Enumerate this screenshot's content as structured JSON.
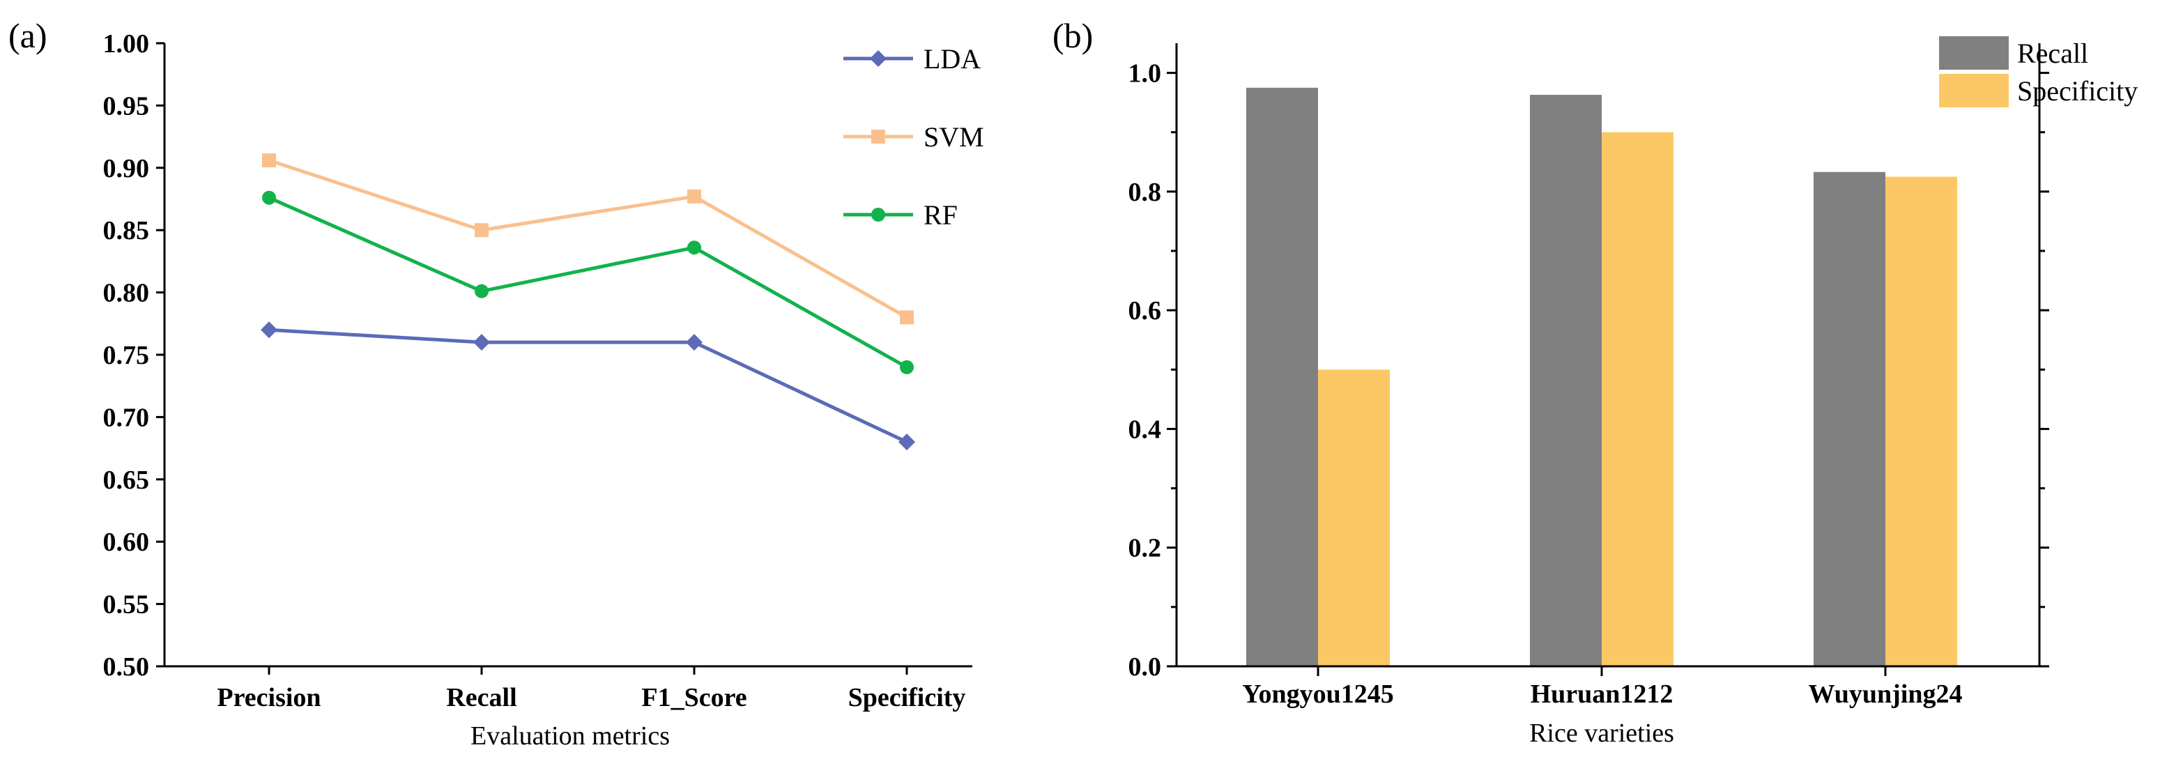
{
  "chart_data": [
    {
      "panel_label": "(a)",
      "type": "line",
      "categories": [
        "Precision",
        "Recall",
        "F1_Score",
        "Specificity"
      ],
      "series": [
        {
          "name": "LDA",
          "values": [
            0.77,
            0.76,
            0.76,
            0.68
          ],
          "color": "#5b6bb6",
          "marker": "diamond"
        },
        {
          "name": "SVM",
          "values": [
            0.906,
            0.85,
            0.877,
            0.78
          ],
          "color": "#f9c08e",
          "marker": "square"
        },
        {
          "name": "RF",
          "values": [
            0.876,
            0.801,
            0.836,
            0.74
          ],
          "color": "#12b24b",
          "marker": "circle"
        }
      ],
      "xlabel": "Evaluation metrics",
      "ylabel": "",
      "ylim": [
        0.5,
        1.0
      ],
      "yticks": [
        "0.50",
        "0.55",
        "0.60",
        "0.65",
        "0.70",
        "0.75",
        "0.80",
        "0.85",
        "0.90",
        "0.95",
        "1.00"
      ],
      "grid": false,
      "legend": "top-right"
    },
    {
      "panel_label": "(b)",
      "type": "bar",
      "categories": [
        "Yongyou1245",
        "Huruan1212",
        "Wuyunjing24"
      ],
      "series": [
        {
          "name": "Recall",
          "values": [
            0.975,
            0.963,
            0.833
          ],
          "color": "#808080"
        },
        {
          "name": "Specificity",
          "values": [
            0.5,
            0.9,
            0.825
          ],
          "color": "#fbc865"
        }
      ],
      "xlabel": "Rice varieties",
      "ylabel": "",
      "ylim": [
        0.0,
        1.05
      ],
      "yticks": [
        "0.0",
        "0.2",
        "0.4",
        "0.6",
        "0.8",
        "1.0"
      ],
      "grid": false,
      "legend": "top-right"
    }
  ]
}
